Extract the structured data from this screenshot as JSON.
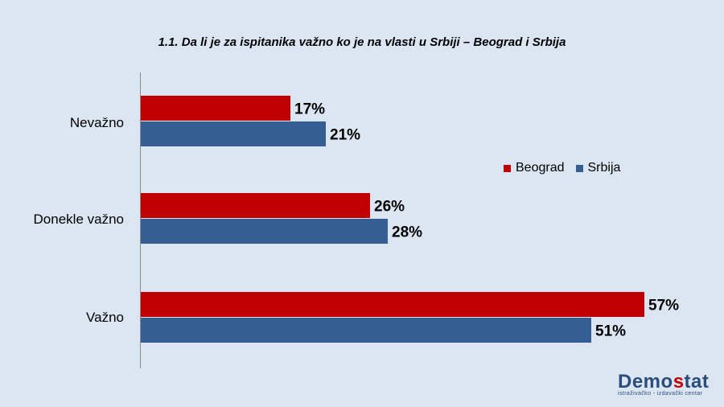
{
  "chart_data": {
    "type": "bar",
    "orientation": "horizontal",
    "title": "1.1. Da li je za ispitanika važno ko je na vlasti u Srbiji – Beograd i Srbija",
    "categories": [
      "Nevažno",
      "Donekle važno",
      "Važno"
    ],
    "series": [
      {
        "name": "Beograd",
        "color": "#c00000",
        "values": [
          17,
          26,
          57
        ],
        "labels": [
          "17%",
          "26%",
          "57%"
        ]
      },
      {
        "name": "Srbija",
        "color": "#355f93",
        "values": [
          21,
          28,
          51
        ],
        "labels": [
          "21%",
          "28%",
          "51%"
        ]
      }
    ],
    "xlim": [
      0,
      57
    ],
    "grid": false,
    "legend_position": "right"
  },
  "logo": {
    "main_prefix": "Demo",
    "main_accent": "s",
    "main_suffix": "tat",
    "subtitle": "istraživačko - izdavački centar"
  }
}
